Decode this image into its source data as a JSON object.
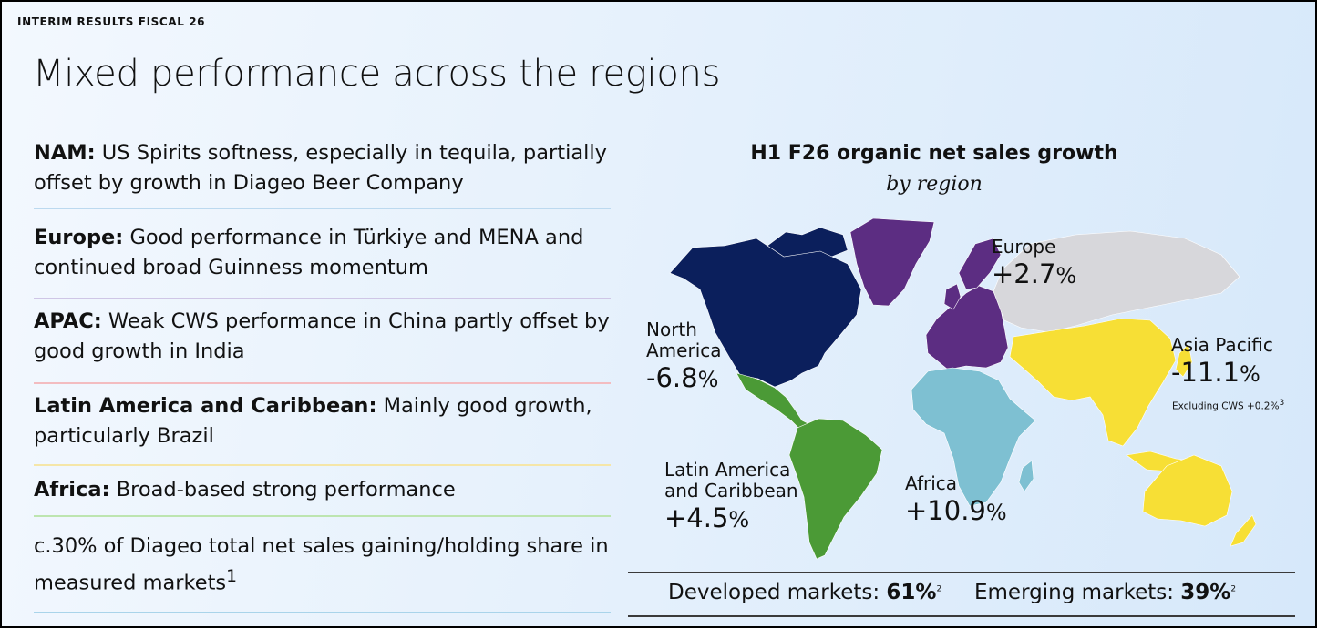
{
  "header": {
    "eyebrow": "INTERIM RESULTS FISCAL 26",
    "title": "Mixed performance across the regions"
  },
  "bullets": [
    {
      "label": "NAM:",
      "text": "US Spirits softness, especially in tequila, partially offset by growth in Diageo Beer Company",
      "divider_color": "#bcd9ef"
    },
    {
      "label": "Europe:",
      "text": "Good performance in Türkiye and MENA and continued broad Guinness momentum",
      "divider_color": "#cfc6e6"
    },
    {
      "label": "APAC:",
      "text": "Weak CWS performance in China partly offset by good growth in India",
      "divider_color": "#f3bcc0"
    },
    {
      "label": "Latin America and Caribbean:",
      "text": "Mainly good growth, particularly Brazil",
      "divider_color": "#f5e6a8"
    },
    {
      "label": "Africa:",
      "text": "Broad-based strong performance",
      "divider_color": "#bde5b0"
    },
    {
      "label": "",
      "text": "c.30% of Diageo total net sales gaining/holding share in measured markets",
      "sup": "1",
      "divider_color": "#a9d4ea"
    }
  ],
  "chart": {
    "title": "H1 F26 organic net sales growth",
    "subtitle": "by region"
  },
  "regions": {
    "north_america": {
      "name_line1": "North",
      "name_line2": "America",
      "value": "-6.8",
      "unit": "%",
      "color": "#0b1f5c"
    },
    "europe": {
      "name_line1": "Europe",
      "value": "+2.7",
      "unit": "%",
      "color": "#5c2d82"
    },
    "asia_pacific": {
      "name_line1": "Asia Pacific",
      "value": "-11.1",
      "unit": "%",
      "note": "Excluding CWS +0.2%",
      "note_sup": "3",
      "color": "#f7df35"
    },
    "latin_america": {
      "name_line1": "Latin America",
      "name_line2": "and Caribbean",
      "value": "+4.5",
      "unit": "%",
      "color": "#4b9a36"
    },
    "africa": {
      "name_line1": "Africa",
      "value": "+10.9",
      "unit": "%",
      "color": "#7ec0d2"
    },
    "other_color": "#d7d7db"
  },
  "markets": {
    "developed_label": "Developed markets:",
    "developed_value": "61%",
    "developed_sup": "2",
    "emerging_label": "Emerging markets:",
    "emerging_value": "39%",
    "emerging_sup": "2"
  }
}
